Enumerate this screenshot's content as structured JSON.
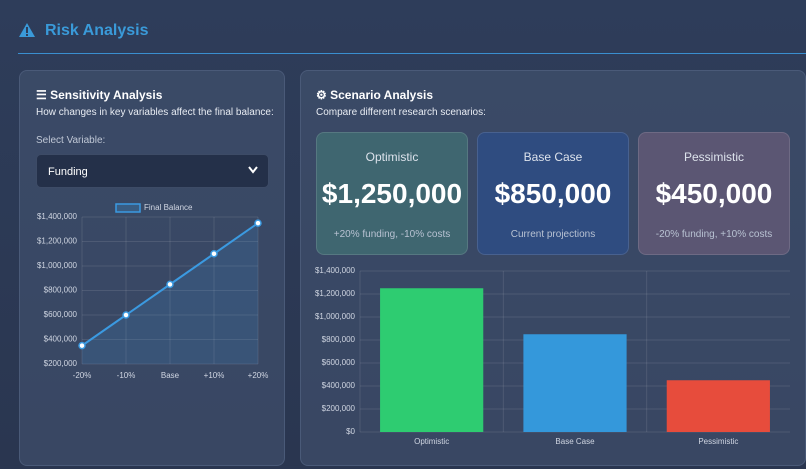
{
  "header": {
    "title": "Risk Analysis"
  },
  "sensitivity": {
    "title": "Sensitivity Analysis",
    "subtitle": "How changes in key variables affect the final balance:",
    "select_label": "Select Variable:",
    "selected": "Funding"
  },
  "scenario": {
    "title": "Scenario Analysis",
    "subtitle": "Compare different research scenarios:",
    "cards": [
      {
        "title": "Optimistic",
        "value": "$1,250,000",
        "note": "+20% funding, -10% costs"
      },
      {
        "title": "Base Case",
        "value": "$850,000",
        "note": "Current projections"
      },
      {
        "title": "Pessimistic",
        "value": "$450,000",
        "note": "-20% funding, +10% costs"
      }
    ]
  },
  "chart_data": [
    {
      "type": "line",
      "categories": [
        "-20%",
        "-10%",
        "Base",
        "+10%",
        "+20%"
      ],
      "series": [
        {
          "name": "Final Balance",
          "color": "#3b9ae1",
          "values": [
            350000,
            600000,
            850000,
            1100000,
            1350000
          ]
        }
      ],
      "ylim": [
        200000,
        1400000
      ],
      "yticks": [
        {
          "value": 200000,
          "label": "$200,000"
        },
        {
          "value": 400000,
          "label": "$400,000"
        },
        {
          "value": 600000,
          "label": "$600,000"
        },
        {
          "value": 800000,
          "label": "$800,000"
        },
        {
          "value": 1000000,
          "label": "$1,000,000"
        },
        {
          "value": 1200000,
          "label": "$1,200,000"
        },
        {
          "value": 1400000,
          "label": "$1,400,000"
        }
      ],
      "grid": true,
      "legend": "top"
    },
    {
      "type": "bar",
      "categories": [
        "Optimistic",
        "Base Case",
        "Pessimistic"
      ],
      "values": [
        1250000,
        850000,
        450000
      ],
      "colors": [
        "#2ecc71",
        "#3498db",
        "#e74c3c"
      ],
      "ylim": [
        0,
        1400000
      ],
      "yticks": [
        {
          "value": 0,
          "label": "$0"
        },
        {
          "value": 200000,
          "label": "$200,000"
        },
        {
          "value": 400000,
          "label": "$400,000"
        },
        {
          "value": 600000,
          "label": "$600,000"
        },
        {
          "value": 800000,
          "label": "$800,000"
        },
        {
          "value": 1000000,
          "label": "$1,000,000"
        },
        {
          "value": 1200000,
          "label": "$1,200,000"
        },
        {
          "value": 1400000,
          "label": "$1,400,000"
        }
      ],
      "grid": true
    }
  ]
}
